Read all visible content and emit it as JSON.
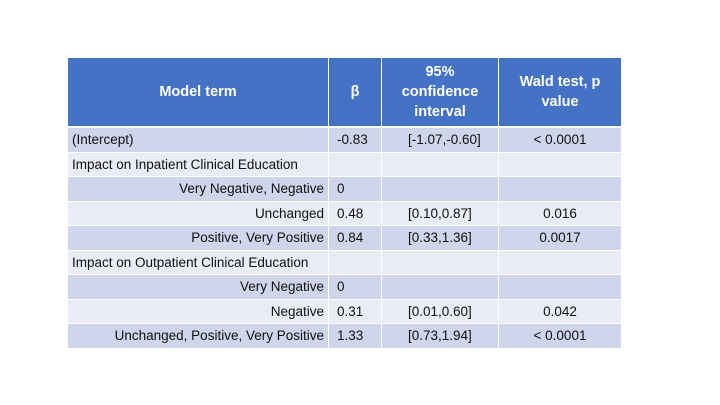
{
  "table": {
    "headers": {
      "model_term": "Model term",
      "beta": "β",
      "ci": "95% confidence interval",
      "p": "Wald test, p value"
    },
    "rows": [
      {
        "term": "(Intercept)",
        "beta": "-0.83",
        "ci": "[-1.07,-0.60]",
        "p": "< 0.0001"
      },
      {
        "term": "Impact on Inpatient Clinical Education",
        "beta": "",
        "ci": "",
        "p": ""
      },
      {
        "term": "Very Negative, Negative",
        "beta": "0",
        "ci": "",
        "p": ""
      },
      {
        "term": "Unchanged",
        "beta": "0.48",
        "ci": "[0.10,0.87]",
        "p": "0.016"
      },
      {
        "term": "Positive, Very Positive",
        "beta": "0.84",
        "ci": "[0.33,1.36]",
        "p": "0.0017"
      },
      {
        "term": "Impact on Outpatient Clinical Education",
        "beta": "",
        "ci": "",
        "p": ""
      },
      {
        "term": "Very Negative",
        "beta": "0",
        "ci": "",
        "p": ""
      },
      {
        "term": "Negative",
        "beta": "0.31",
        "ci": "[0.01,0.60]",
        "p": "0.042"
      },
      {
        "term": "Unchanged, Positive, Very Positive",
        "beta": "1.33",
        "ci": "[0.73,1.94]",
        "p": "< 0.0001"
      }
    ]
  },
  "colors": {
    "header_bg": "#4472c4",
    "row_dark": "#cfd5ea",
    "row_light": "#e9ebf5"
  }
}
